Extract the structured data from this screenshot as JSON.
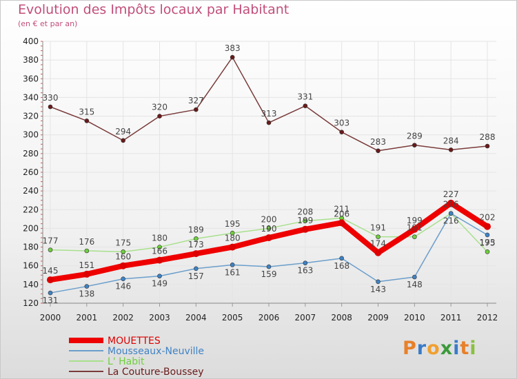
{
  "header": {
    "title": "Evolution des Impôts locaux par Habitant",
    "subtitle": "(en € et par an)"
  },
  "logo": {
    "text": "Proxiti",
    "letters": [
      "P",
      "r",
      "o",
      "x",
      "i",
      "t",
      "i"
    ],
    "colors": [
      "#e8802a",
      "#3a7bc8",
      "#f0a030",
      "#3a9a3a",
      "#3a7bc8",
      "#e8802a",
      "#8ac040"
    ]
  },
  "chart_data": {
    "type": "line",
    "title": "Evolution des Impôts locaux par Habitant",
    "subtitle": "(en € et par an)",
    "xlabel": "",
    "ylabel": "",
    "ylim": [
      120,
      400
    ],
    "yticks": [
      120,
      140,
      160,
      180,
      200,
      220,
      240,
      260,
      280,
      300,
      320,
      340,
      360,
      380,
      400
    ],
    "grid": true,
    "legend_position": "bottom-left",
    "categories": [
      "2000",
      "2001",
      "2002",
      "2003",
      "2004",
      "2005",
      "2006",
      "2007",
      "2008",
      "2009",
      "2010",
      "2011",
      "2012"
    ],
    "series": [
      {
        "name": "MOUETTES",
        "color": "#ee0000",
        "marker": "#dd0000",
        "values": [
          145,
          151,
          160,
          166,
          173,
          180,
          190,
          199,
          206,
          174,
          199,
          227,
          202
        ]
      },
      {
        "name": "Mousseaux-Neuville",
        "color": "#6a9ecb",
        "marker": "#3f82c4",
        "values": [
          131,
          138,
          146,
          149,
          157,
          161,
          159,
          163,
          168,
          143,
          148,
          216,
          193
        ]
      },
      {
        "name": "L' Habit",
        "color": "#a8e08c",
        "marker": "#6fcf3e",
        "values": [
          177,
          176,
          175,
          180,
          189,
          195,
          200,
          208,
          211,
          191,
          191,
          216,
          175
        ]
      },
      {
        "name": "La Couture-Boussey",
        "color": "#7a3a3a",
        "marker": "#6a1a1a",
        "values": [
          330,
          315,
          294,
          320,
          327,
          383,
          313,
          331,
          303,
          283,
          289,
          284,
          288
        ]
      }
    ]
  }
}
